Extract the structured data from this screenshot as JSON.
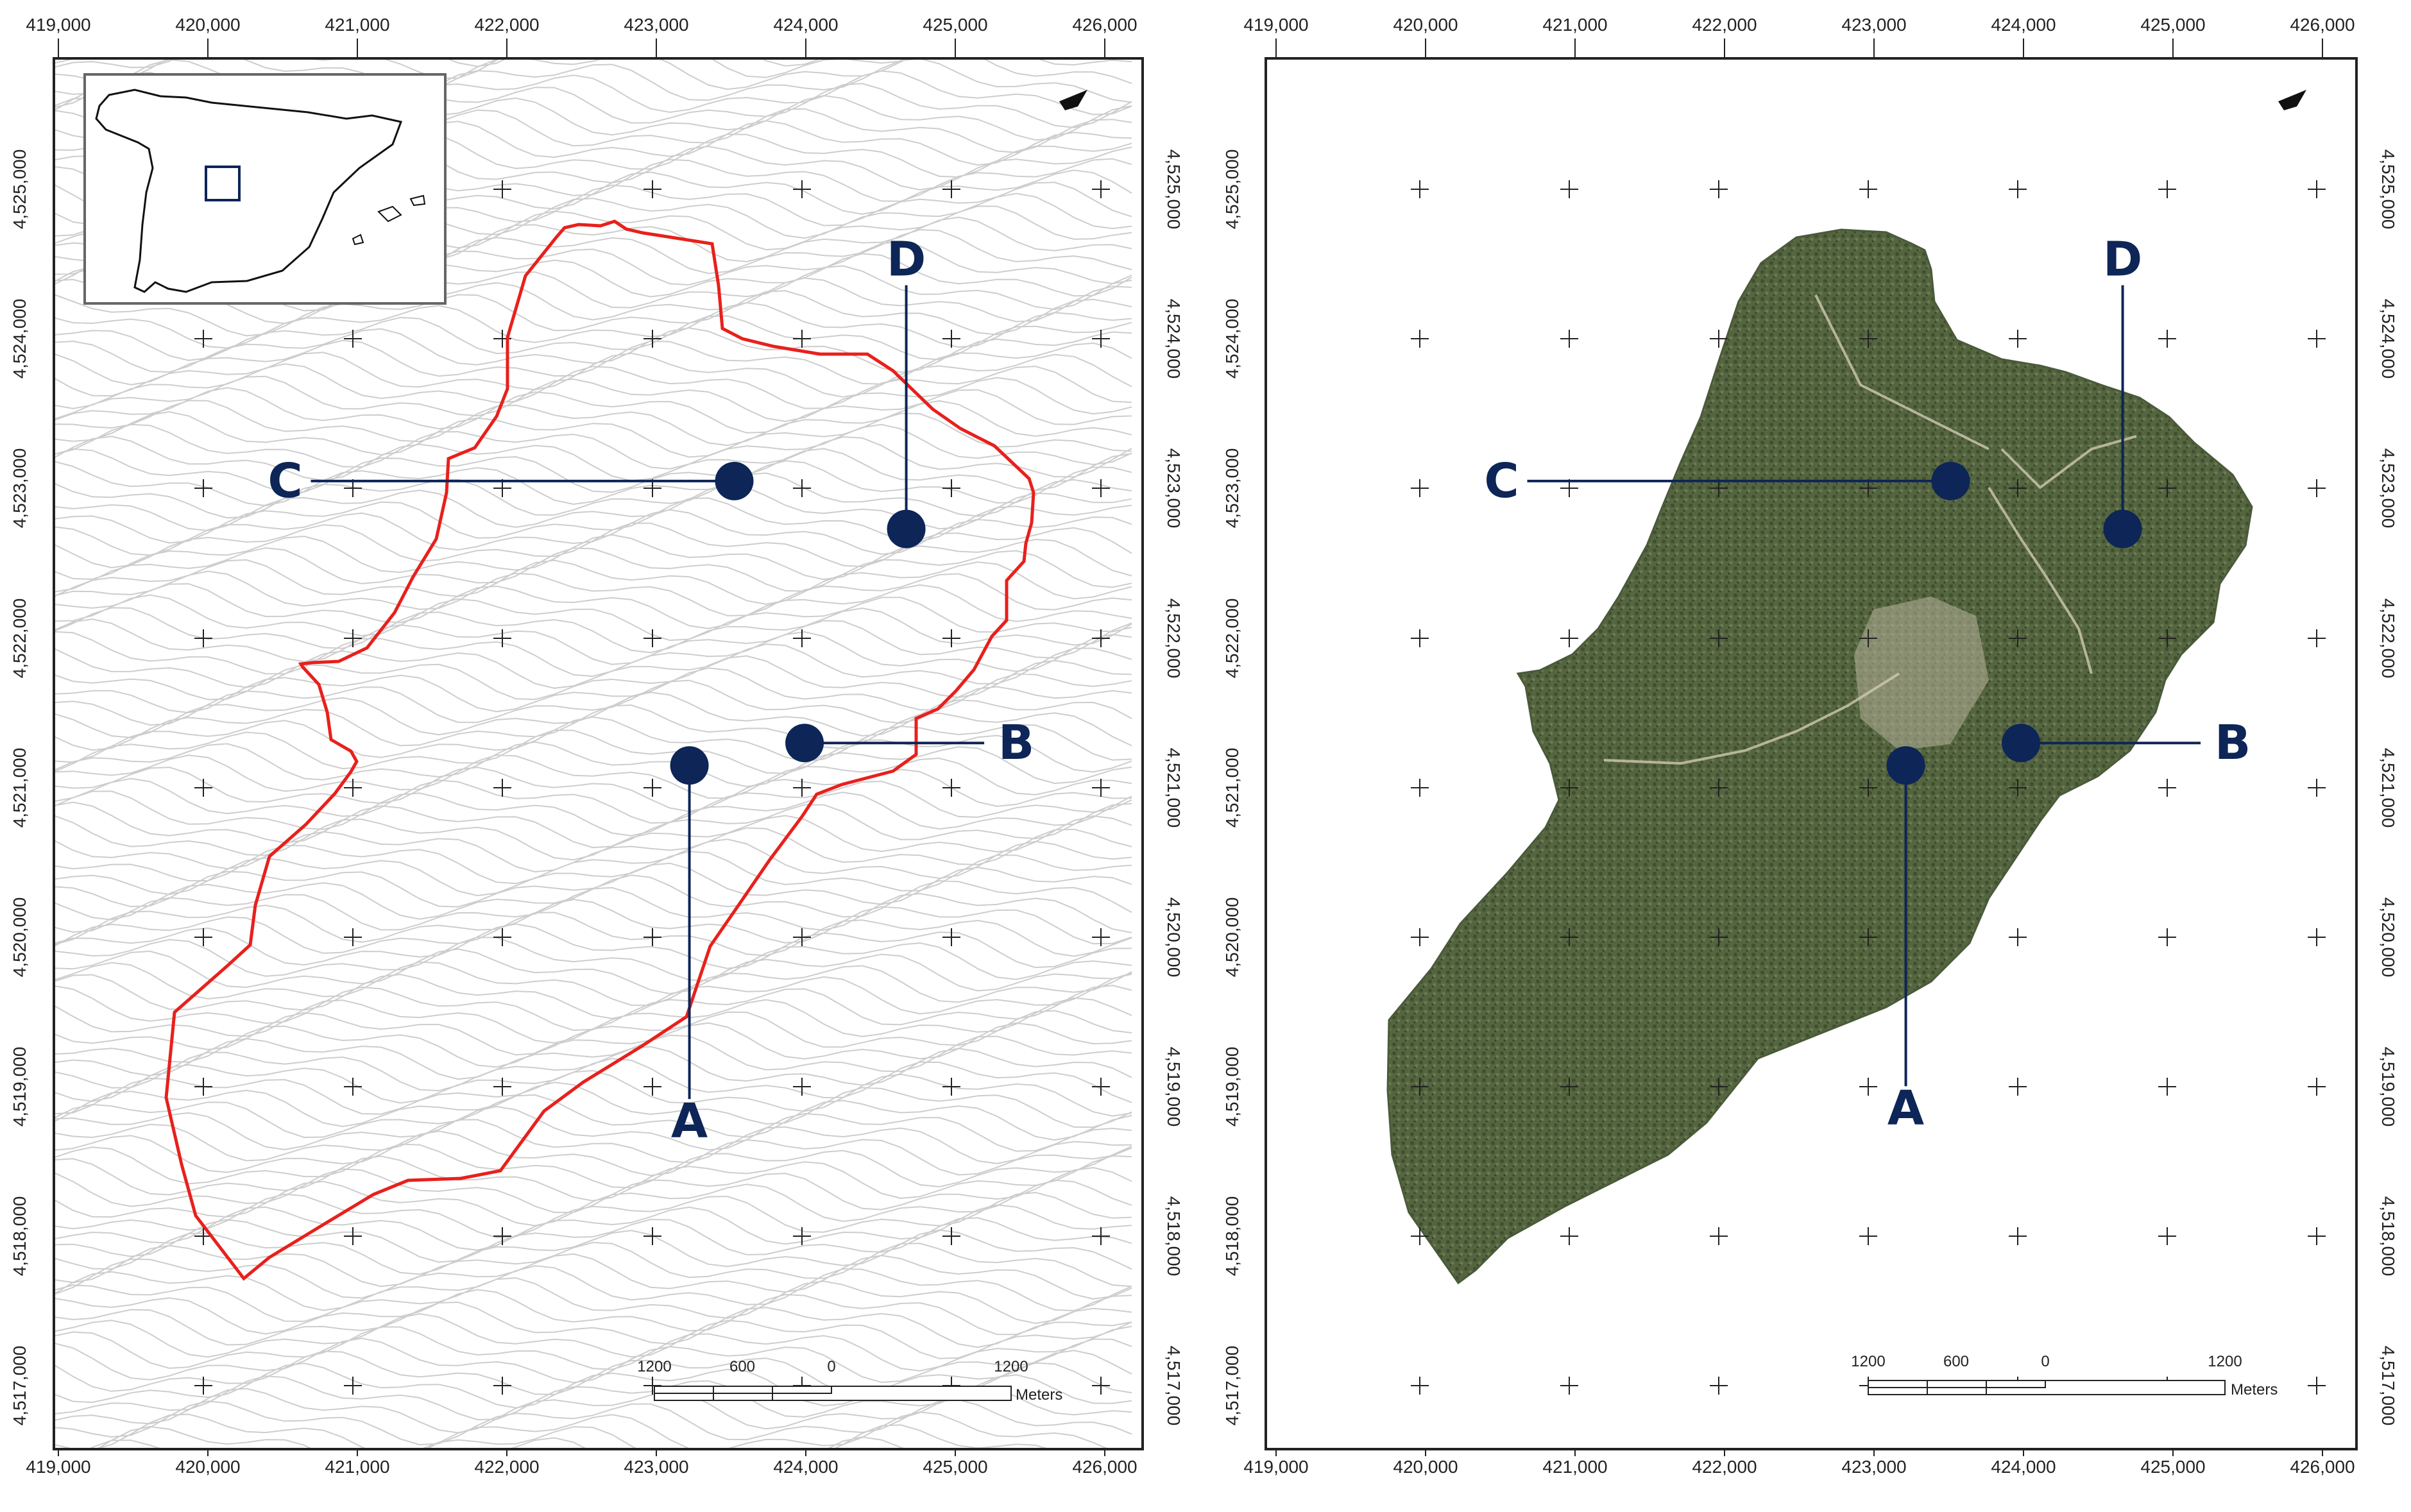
{
  "colors": {
    "marker": "#0d2557",
    "boundary": "#e8201c",
    "contour": "#c9c9c9",
    "frame": "#222222",
    "orthophoto": "#5b6b4a"
  },
  "x_ticks": [
    "419,000",
    "420,000",
    "421,000",
    "422,000",
    "423,000",
    "424,000",
    "425,000",
    "426,000"
  ],
  "y_ticks": [
    "4,525,000",
    "4,524,000",
    "4,523,000",
    "4,522,000",
    "4,521,000",
    "4,520,000",
    "4,519,000",
    "4,518,000",
    "4,517,000"
  ],
  "points": [
    {
      "label": "A",
      "x": 423250,
      "y": 4521150
    },
    {
      "label": "B",
      "x": 424020,
      "y": 4521300
    },
    {
      "label": "C",
      "x": 423550,
      "y": 4523050
    },
    {
      "label": "D",
      "x": 424700,
      "y": 4522730
    }
  ],
  "scale_bar": {
    "labels": [
      "1200",
      "600",
      "0",
      "1200"
    ],
    "unit": "Meters"
  },
  "north_arrow_icon": "north-arrow-icon",
  "inset_map": {
    "content": "Iberian Peninsula outline with study-area box",
    "icon": "locator-icon"
  }
}
